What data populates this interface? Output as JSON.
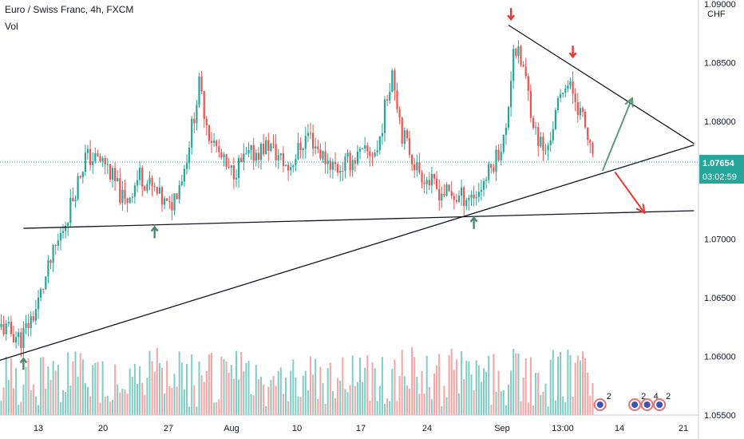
{
  "header": {
    "symbol_title": "Euro / Swiss Franc, 4h, FXCM",
    "volume_label": "Vol"
  },
  "colors": {
    "up": "#26a69a",
    "down": "#ef5350",
    "volume_up": "#7fcdc5",
    "volume_down": "#f4a5a4",
    "trendline": "#131722",
    "projection_up": "#5c9a7a",
    "projection_down": "#e53935",
    "marker_up": "#4b8a6b",
    "marker_down": "#e53935",
    "price_label_bg": "#26a69a",
    "current_line": "#26a69a"
  },
  "chart_data": {
    "type": "candlestick",
    "title": "Euro / Swiss Franc, 4h, FXCM",
    "currency": "CHF",
    "x_ticks": [
      "13",
      "20",
      "27",
      "Aug",
      "10",
      "17",
      "24",
      "Sep",
      "13:00",
      "14",
      "21"
    ],
    "y_ticks": [
      "1.09000",
      "1.08500",
      "1.08000",
      "1.07500",
      "1.07000",
      "1.06500",
      "1.06000",
      "1.05500"
    ],
    "ylim": [
      1.055,
      1.09
    ],
    "last_price": "1.07654",
    "countdown": "03:02:59",
    "grid": false,
    "candle_count": 240,
    "price_path": [
      {
        "bar": 0,
        "price": 1.0625
      },
      {
        "bar": 8,
        "price": 1.0615
      },
      {
        "bar": 14,
        "price": 1.064
      },
      {
        "bar": 20,
        "price": 1.068
      },
      {
        "bar": 26,
        "price": 1.0715
      },
      {
        "bar": 34,
        "price": 1.077
      },
      {
        "bar": 42,
        "price": 1.0765
      },
      {
        "bar": 50,
        "price": 1.073
      },
      {
        "bar": 56,
        "price": 1.0755
      },
      {
        "bar": 62,
        "price": 1.074
      },
      {
        "bar": 68,
        "price": 1.0725
      },
      {
        "bar": 74,
        "price": 1.076
      },
      {
        "bar": 80,
        "price": 1.083
      },
      {
        "bar": 84,
        "price": 1.079
      },
      {
        "bar": 92,
        "price": 1.0755
      },
      {
        "bar": 100,
        "price": 1.077
      },
      {
        "bar": 108,
        "price": 1.078
      },
      {
        "bar": 116,
        "price": 1.076
      },
      {
        "bar": 124,
        "price": 1.079
      },
      {
        "bar": 130,
        "price": 1.077
      },
      {
        "bar": 136,
        "price": 1.076
      },
      {
        "bar": 144,
        "price": 1.077
      },
      {
        "bar": 152,
        "price": 1.0775
      },
      {
        "bar": 158,
        "price": 1.0845
      },
      {
        "bar": 162,
        "price": 1.079
      },
      {
        "bar": 168,
        "price": 1.076
      },
      {
        "bar": 176,
        "price": 1.0742
      },
      {
        "bar": 184,
        "price": 1.0735
      },
      {
        "bar": 192,
        "price": 1.0738
      },
      {
        "bar": 198,
        "price": 1.076
      },
      {
        "bar": 204,
        "price": 1.079
      },
      {
        "bar": 207,
        "price": 1.0865
      },
      {
        "bar": 211,
        "price": 1.0845
      },
      {
        "bar": 216,
        "price": 1.079
      },
      {
        "bar": 220,
        "price": 1.0772
      },
      {
        "bar": 224,
        "price": 1.0805
      },
      {
        "bar": 228,
        "price": 1.0835
      },
      {
        "bar": 232,
        "price": 1.082
      },
      {
        "bar": 236,
        "price": 1.0795
      },
      {
        "bar": 239,
        "price": 1.0765
      }
    ],
    "trendlines": [
      {
        "name": "support",
        "from": {
          "bar": -3,
          "price": 1.0595
        },
        "to": {
          "bar": 280,
          "price": 1.078
        }
      },
      {
        "name": "horizontal",
        "from": {
          "bar": 9,
          "price": 1.0709
        },
        "to": {
          "bar": 280,
          "price": 1.0724
        }
      },
      {
        "name": "resistance",
        "from": {
          "bar": 205,
          "price": 1.0882
        },
        "to": {
          "bar": 280,
          "price": 1.0781
        }
      }
    ],
    "projections": [
      {
        "direction": "up",
        "from": {
          "bar": 243,
          "price": 1.0758
        },
        "to": {
          "bar": 255,
          "price": 1.082
        }
      },
      {
        "direction": "down",
        "from": {
          "bar": 248,
          "price": 1.0757
        },
        "to": {
          "bar": 260,
          "price": 1.0722
        }
      }
    ],
    "markers": [
      {
        "direction": "up",
        "bar": 9,
        "price": 1.0598
      },
      {
        "direction": "up",
        "bar": 62,
        "price": 1.071
      },
      {
        "direction": "up",
        "bar": 191,
        "price": 1.0718
      },
      {
        "direction": "down",
        "bar": 206,
        "price": 1.0887
      },
      {
        "direction": "down",
        "bar": 231,
        "price": 1.0855
      }
    ],
    "event_badges": [
      {
        "bar": 242,
        "count": "2"
      },
      {
        "bar": 256,
        "count": "2"
      },
      {
        "bar": 261,
        "count": "4"
      },
      {
        "bar": 266,
        "count": "2"
      }
    ]
  }
}
